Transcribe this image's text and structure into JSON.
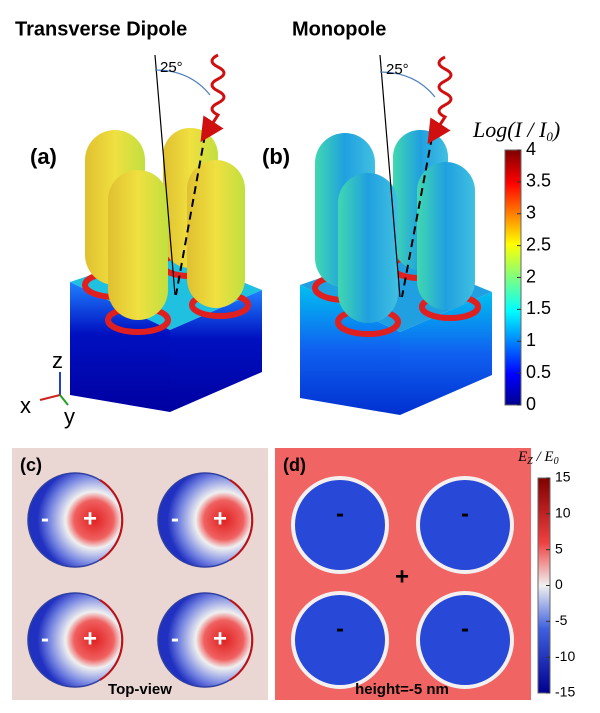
{
  "panels": [
    {
      "label": "(a)",
      "title": "Transverse Dipole",
      "angle": "25°"
    },
    {
      "label": "(b)",
      "title": "Monopole",
      "angle": "25°"
    },
    {
      "label": "(c)",
      "caption": "Top-view",
      "signs": [
        [
          "-",
          "+"
        ],
        [
          "-",
          "+"
        ],
        [
          "-",
          "+"
        ],
        [
          "-",
          "+"
        ]
      ]
    },
    {
      "label": "(d)",
      "caption": "height=-5 nm",
      "signs": [
        "-",
        "-",
        "-",
        "-"
      ],
      "center_sign": "+"
    }
  ],
  "axes": {
    "z": "z",
    "x": "x",
    "y": "y"
  },
  "colorbar_top": {
    "title": {
      "text": "Log(I / I",
      "sub": "0",
      "end": ")"
    },
    "ticks": [
      4,
      3.5,
      3,
      2.5,
      2,
      1.5,
      1,
      0.5,
      0
    ]
  },
  "colorbar_bottom": {
    "title": {
      "text": "E",
      "sub": "Z",
      "mid": " / E",
      "sub2": "0"
    },
    "ticks": [
      15,
      10,
      5,
      0,
      -5,
      -10,
      -15
    ]
  }
}
